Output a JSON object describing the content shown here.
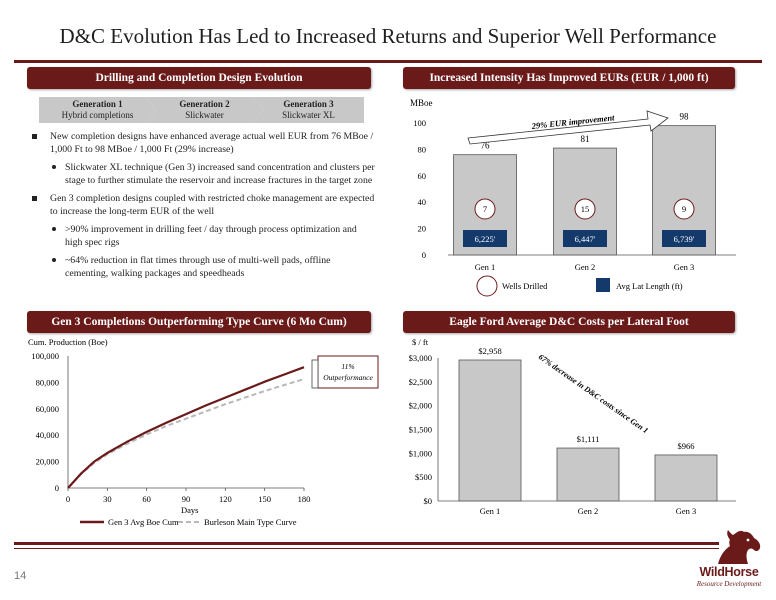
{
  "page": {
    "title": "D&C Evolution Has Led to Increased Returns and Superior Well Performance",
    "page_number": "14"
  },
  "colors": {
    "accent": "#6b1a1a",
    "bar_fill": "#c8c8c8",
    "lat_box": "#14396b",
    "gen3_line": "#6b1a1a",
    "type_curve": "#b8b8b8"
  },
  "panel_headers": {
    "design_evolution": "Drilling and Completion Design Evolution",
    "eur": "Increased Intensity Has Improved EURs (EUR / 1,000 ft)",
    "cum": "Gen 3 Completions Outperforming Type Curve (6 Mo Cum)",
    "costs": "Eagle Ford Average D&C Costs per Lateral Foot"
  },
  "generations": [
    {
      "title": "Generation 1",
      "subtitle": "Hybrid completions"
    },
    {
      "title": "Generation 2",
      "subtitle": "Slickwater"
    },
    {
      "title": "Generation 3",
      "subtitle": "Slickwater XL"
    }
  ],
  "bullets": [
    "New completion designs have enhanced average actual well EUR from 76 MBoe / 1,000 Ft to 98 MBoe / 1,000 Ft (29% increase)",
    "Slickwater XL technique (Gen 3) increased sand concentration and clusters per stage to further stimulate the reservoir and increase fractures in the target zone",
    "Gen 3 completion designs coupled with restricted choke management are expected to increase the long-term EUR of the well",
    ">90% improvement in drilling feet / day through process optimization and high spec rigs",
    "~64% reduction in flat times through use of multi-well pads, offline cementing, walking packages and speedheads"
  ],
  "eur_chart": {
    "ylabel": "MBoe",
    "yticks": [
      "0",
      "20",
      "40",
      "60",
      "80",
      "100"
    ],
    "annotation": "29% EUR improvement",
    "legend_wells": "Wells Drilled",
    "legend_lat": "Avg Lat Length (ft)"
  },
  "cum_chart": {
    "ylabel": "Cum. Production (Boe)",
    "xlabel": "Days",
    "yticks": [
      "0",
      "20,000",
      "40,000",
      "60,000",
      "80,000",
      "100,000"
    ],
    "xticks": [
      "0",
      "30",
      "60",
      "90",
      "120",
      "150",
      "180"
    ],
    "callout": "11%\nOutperformance",
    "callout_line1": "11%",
    "callout_line2": "Outperformance"
  },
  "cost_chart": {
    "ylabel": "$ / ft",
    "yticks": [
      "$0",
      "$500",
      "$1,000",
      "$1,500",
      "$2,000",
      "$2,500",
      "$3,000"
    ],
    "annotation": "67% decrease in D&C costs since Gen 1"
  },
  "chart_data": [
    {
      "type": "bar",
      "title": "Increased Intensity Has Improved EURs (EUR / 1,000 ft)",
      "ylabel": "MBoe",
      "categories": [
        "Gen 1",
        "Gen 2",
        "Gen 3"
      ],
      "values": [
        76,
        81,
        98
      ],
      "value_labels": [
        "76",
        "81",
        "98"
      ],
      "wells_drilled": [
        "7",
        "15",
        "9"
      ],
      "avg_lat_length": [
        "6,225'",
        "6,447'",
        "6,739'"
      ],
      "ylim": [
        0,
        100
      ],
      "legend": [
        "Wells Drilled",
        "Avg Lat Length (ft)"
      ]
    },
    {
      "type": "line",
      "title": "Gen 3 Completions Outperforming Type Curve (6 Mo Cum)",
      "xlabel": "Days",
      "ylabel": "Cum. Production (Boe)",
      "xlim": [
        0,
        180
      ],
      "ylim": [
        0,
        100000
      ],
      "series": [
        {
          "name": "Gen 3 Avg Boe Cum",
          "x": [
            0,
            10,
            20,
            30,
            45,
            60,
            75,
            90,
            105,
            120,
            135,
            150,
            165,
            180
          ],
          "values": [
            0,
            11000,
            20000,
            26500,
            35000,
            42500,
            49500,
            56000,
            62500,
            68500,
            74500,
            80500,
            86000,
            91500
          ]
        },
        {
          "name": "Burleson Main Type Curve",
          "x": [
            0,
            10,
            20,
            30,
            45,
            60,
            75,
            90,
            105,
            120,
            135,
            150,
            165,
            180
          ],
          "values": [
            0,
            10500,
            19000,
            25500,
            33500,
            40500,
            47000,
            52500,
            58000,
            63500,
            68500,
            73500,
            78000,
            82500
          ]
        }
      ]
    },
    {
      "type": "bar",
      "title": "Eagle Ford Average D&C Costs per Lateral Foot",
      "ylabel": "$ / ft",
      "categories": [
        "Gen 1",
        "Gen 2",
        "Gen 3"
      ],
      "values": [
        2958,
        1111,
        966
      ],
      "value_labels": [
        "$2,958",
        "$1,111",
        "$966"
      ],
      "ylim": [
        0,
        3000
      ]
    }
  ],
  "logo": {
    "name": "WildHorse",
    "sub": "Resource Development"
  }
}
